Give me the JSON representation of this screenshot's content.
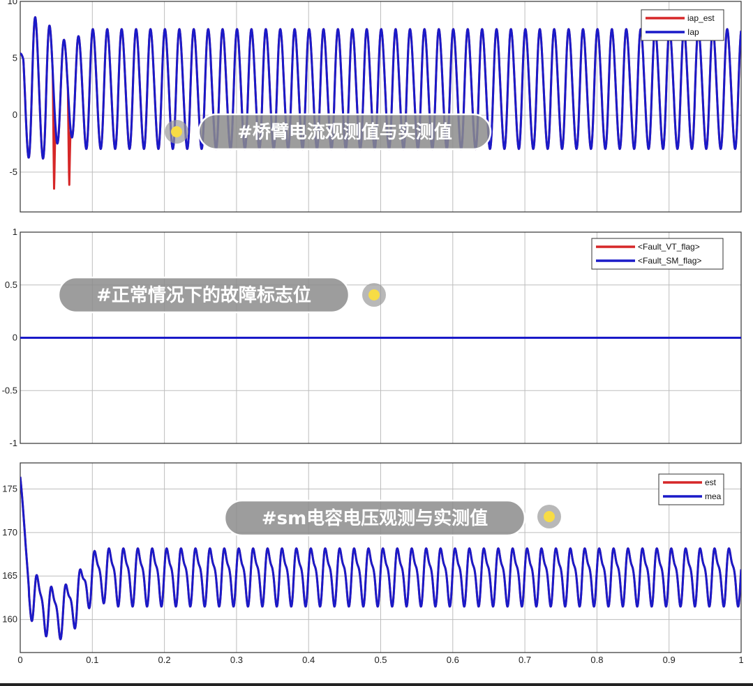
{
  "chart_data": [
    {
      "type": "line",
      "title": "",
      "xlabel": "",
      "ylabel": "",
      "xlim": [
        0,
        1
      ],
      "ylim": [
        -8.5,
        10
      ],
      "x_ticks": [
        "0",
        "0.1",
        "0.2",
        "0.3",
        "0.4",
        "0.5",
        "0.6",
        "0.7",
        "0.8",
        "0.9",
        "1"
      ],
      "y_ticks": [
        "-5",
        "0",
        "5",
        "10"
      ],
      "grid": true,
      "legend_position": "top-right",
      "series": [
        {
          "name": "iap_est",
          "color": "#d62728",
          "signal": "oscillation",
          "frequency_cycles_per_unit": 50,
          "offset": 2.3,
          "amplitude": 5.2,
          "min": -6.8,
          "max": 8.1,
          "spikes": [
            {
              "x": 0.047,
              "y": -6.8
            },
            {
              "x": 0.068,
              "y": -6.4
            }
          ]
        },
        {
          "name": "Iap",
          "color": "#1a1ac8",
          "signal": "oscillation",
          "frequency_cycles_per_unit": 50,
          "offset": 2.3,
          "amplitude": 5.2,
          "min": -5.2,
          "max": 8.1
        }
      ],
      "annotation": "#桥臂电流观测值与实测值"
    },
    {
      "type": "line",
      "title": "",
      "xlabel": "",
      "ylabel": "",
      "xlim": [
        0,
        1
      ],
      "ylim": [
        -1,
        1
      ],
      "x_ticks": [
        "0",
        "0.1",
        "0.2",
        "0.3",
        "0.4",
        "0.5",
        "0.6",
        "0.7",
        "0.8",
        "0.9",
        "1"
      ],
      "y_ticks": [
        "-1",
        "-0.5",
        "0",
        "0.5",
        "1"
      ],
      "grid": true,
      "legend_position": "top-right",
      "series": [
        {
          "name": "<Fault_VT_flag>",
          "color": "#d62728",
          "x": [
            0,
            1
          ],
          "values": [
            0,
            0
          ]
        },
        {
          "name": "<Fault_SM_flag>",
          "color": "#1a1ac8",
          "x": [
            0,
            1
          ],
          "values": [
            0,
            0
          ]
        }
      ],
      "annotation": "#正常情况下的故障标志位"
    },
    {
      "type": "line",
      "title": "",
      "xlabel": "",
      "ylabel": "",
      "xlim": [
        0,
        1
      ],
      "ylim": [
        156.2,
        178
      ],
      "x_ticks": [
        "0",
        "0.1",
        "0.2",
        "0.3",
        "0.4",
        "0.5",
        "0.6",
        "0.7",
        "0.8",
        "0.9",
        "1"
      ],
      "y_ticks": [
        "160",
        "165",
        "170",
        "175"
      ],
      "grid": true,
      "legend_position": "top-right",
      "series": [
        {
          "name": "est",
          "color": "#d62728",
          "signal": "oscillation",
          "frequency_cycles_per_unit": 50,
          "initial_peak": 176.3,
          "min": 158.2,
          "steady_min": 162.5,
          "steady_max": 168.2
        },
        {
          "name": "mea",
          "color": "#1a1ac8",
          "signal": "oscillation",
          "frequency_cycles_per_unit": 50,
          "initial_peak": 176.3,
          "min": 158.2,
          "steady_min": 162.5,
          "steady_max": 168.2
        }
      ],
      "annotation": "#sm电容电压观测与实测值"
    }
  ],
  "colors": {
    "highlight_dot": "#f7dc45",
    "bubble_fill": "#8c8c8c"
  }
}
